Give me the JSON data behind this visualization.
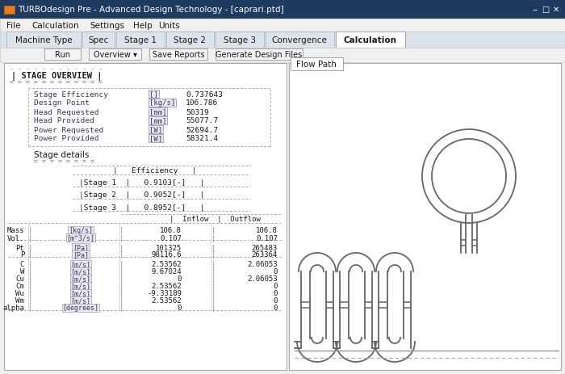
{
  "title_bar": "TURBOdesign Pre - Advanced Design Technology - [caprari.ptd]",
  "menu_items": [
    "File",
    "Calculation",
    "Settings",
    "Help",
    "Units"
  ],
  "tabs": [
    "Machine Type",
    "Spec",
    "Stage 1",
    "Stage 2",
    "Stage 3",
    "Convergence",
    "Calculation"
  ],
  "active_tab": "Calculation",
  "buttons": [
    [
      "Run",
      45
    ],
    [
      "Overview ▾",
      65
    ],
    [
      "Save Reports",
      72
    ],
    [
      "Generate Design Files",
      108
    ]
  ],
  "overview_items": [
    [
      "Stage Efficiency",
      "[]",
      "0.737643"
    ],
    [
      "Design Point",
      "[kg/s]",
      "106.786"
    ],
    [
      "Head Requested",
      "[mm]",
      "50319"
    ],
    [
      "Head Provided",
      "[mm]",
      "55077.7"
    ],
    [
      "Power Requested",
      "[W]",
      "52694.7"
    ],
    [
      "Power Provided",
      "[W]",
      "58321.4"
    ]
  ],
  "stage_details": [
    [
      "Stage 1",
      "0.9103[-]"
    ],
    [
      "Stage 2",
      "0.9052[-]"
    ],
    [
      "Stage 3",
      "0.8952[-]"
    ]
  ],
  "flow_groups": [
    {
      "params": [
        "Mass",
        "Vol."
      ],
      "units": [
        "[kg/s]",
        "[m^3/s]"
      ],
      "inflows": [
        "106.8",
        "0.107"
      ],
      "outflows": [
        "106.8",
        "0.107"
      ]
    },
    {
      "params": [
        "Pt",
        "P"
      ],
      "units": [
        "[Pa]",
        "[Pa]"
      ],
      "inflows": [
        "101325",
        "98116.6"
      ],
      "outflows": [
        "265483",
        "263364"
      ]
    },
    {
      "params": [
        "C",
        "W",
        "Cu",
        "Cm",
        "Wu",
        "Wm",
        "alpha"
      ],
      "units": [
        "[m/s]",
        "[m/s]",
        "[m/s]",
        "[m/s]",
        "[m/s]",
        "[m/s]",
        "[degrees]"
      ],
      "inflows": [
        "2.53562",
        "9.67024",
        "0",
        "2.53562",
        "-9.33189",
        "2.53562",
        "0"
      ],
      "outflows": [
        "2.06053",
        "0",
        "2.06053",
        "0",
        "0",
        "0",
        "0"
      ]
    }
  ],
  "bg_color": "#f0f0f0",
  "title_bar_bg": "#1e3a5f",
  "line_color": "#666666",
  "dash_color": "#aaaaaa"
}
